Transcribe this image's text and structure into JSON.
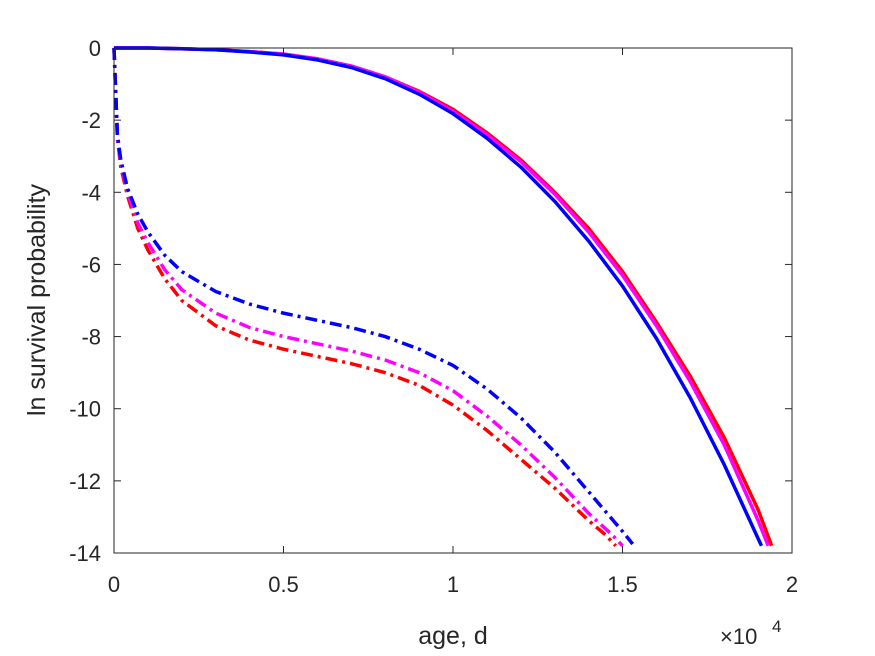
{
  "chart_data": {
    "type": "line",
    "xlabel": "age, d",
    "ylabel": "ln survival probability",
    "x_exponent_label": "×10",
    "x_exponent_power": "4",
    "xlim": [
      0,
      20000
    ],
    "ylim": [
      -14,
      0
    ],
    "xticks": [
      0,
      5000,
      10000,
      15000,
      20000
    ],
    "xtick_labels": [
      "0",
      "0.5",
      "1",
      "1.5",
      "2"
    ],
    "yticks": [
      0,
      -2,
      -4,
      -6,
      -8,
      -10,
      -12,
      -14
    ],
    "ytick_labels": [
      "0",
      "-2",
      "-4",
      "-6",
      "-8",
      "-10",
      "-12",
      "-14"
    ],
    "grid": false,
    "legend": "none",
    "series": [
      {
        "color": "#ff0000",
        "style": "solid",
        "x": [
          0,
          1000,
          2000,
          3000,
          4000,
          5000,
          6000,
          7000,
          8000,
          9000,
          10000,
          11000,
          12000,
          13000,
          14000,
          15000,
          16000,
          17000,
          18000,
          19000,
          19400
        ],
        "y": [
          0,
          0,
          -0.02,
          -0.05,
          -0.1,
          -0.17,
          -0.3,
          -0.5,
          -0.8,
          -1.2,
          -1.7,
          -2.35,
          -3.1,
          -4.0,
          -5.0,
          -6.2,
          -7.6,
          -9.1,
          -10.8,
          -12.8,
          -13.8
        ]
      },
      {
        "color": "#ff00ff",
        "style": "solid",
        "x": [
          0,
          1000,
          2000,
          3000,
          4000,
          5000,
          6000,
          7000,
          8000,
          9000,
          10000,
          11000,
          12000,
          13000,
          14000,
          15000,
          16000,
          17000,
          18000,
          19000,
          19300
        ],
        "y": [
          0,
          0,
          -0.02,
          -0.05,
          -0.1,
          -0.17,
          -0.3,
          -0.5,
          -0.8,
          -1.22,
          -1.75,
          -2.4,
          -3.15,
          -4.05,
          -5.1,
          -6.3,
          -7.7,
          -9.25,
          -11.0,
          -13.1,
          -13.8
        ]
      },
      {
        "color": "#0000ff",
        "style": "solid",
        "x": [
          0,
          1000,
          2000,
          3000,
          4000,
          5000,
          6000,
          7000,
          8000,
          9000,
          10000,
          11000,
          12000,
          13000,
          14000,
          15000,
          16000,
          17000,
          18000,
          19000,
          19100
        ],
        "y": [
          0,
          0,
          -0.02,
          -0.05,
          -0.11,
          -0.19,
          -0.33,
          -0.54,
          -0.85,
          -1.28,
          -1.82,
          -2.5,
          -3.3,
          -4.25,
          -5.35,
          -6.6,
          -8.05,
          -9.7,
          -11.55,
          -13.6,
          -13.8
        ]
      },
      {
        "color": "#ff0000",
        "style": "dashdot",
        "x": [
          0,
          100,
          200,
          400,
          700,
          1000,
          1500,
          2000,
          3000,
          4000,
          5000,
          6000,
          7000,
          8000,
          9000,
          10000,
          11000,
          12000,
          13000,
          14000,
          14500,
          14800
        ],
        "y": [
          0,
          -2.5,
          -3.3,
          -4.1,
          -5.0,
          -5.6,
          -6.4,
          -7.0,
          -7.7,
          -8.1,
          -8.35,
          -8.55,
          -8.75,
          -9.0,
          -9.35,
          -9.9,
          -10.6,
          -11.4,
          -12.2,
          -13.1,
          -13.5,
          -13.8
        ]
      },
      {
        "color": "#ff00ff",
        "style": "dashdot",
        "x": [
          0,
          100,
          200,
          400,
          700,
          1000,
          1500,
          2000,
          3000,
          4000,
          5000,
          6000,
          7000,
          8000,
          9000,
          10000,
          11000,
          12000,
          13000,
          14000,
          14700,
          15000
        ],
        "y": [
          0,
          -2.5,
          -3.2,
          -4.0,
          -4.85,
          -5.4,
          -6.15,
          -6.7,
          -7.35,
          -7.75,
          -8.0,
          -8.2,
          -8.4,
          -8.65,
          -9.0,
          -9.5,
          -10.2,
          -11.0,
          -11.9,
          -12.9,
          -13.5,
          -13.8
        ]
      },
      {
        "color": "#0000ff",
        "style": "dashdot",
        "x": [
          0,
          100,
          200,
          400,
          700,
          1000,
          1500,
          2000,
          3000,
          4000,
          5000,
          6000,
          7000,
          8000,
          9000,
          10000,
          11000,
          12000,
          13000,
          14000,
          15000,
          15300
        ],
        "y": [
          0,
          -2.4,
          -3.1,
          -3.9,
          -4.6,
          -5.1,
          -5.75,
          -6.2,
          -6.75,
          -7.1,
          -7.35,
          -7.55,
          -7.75,
          -8.0,
          -8.35,
          -8.8,
          -9.45,
          -10.25,
          -11.2,
          -12.3,
          -13.4,
          -13.75
        ]
      }
    ]
  }
}
